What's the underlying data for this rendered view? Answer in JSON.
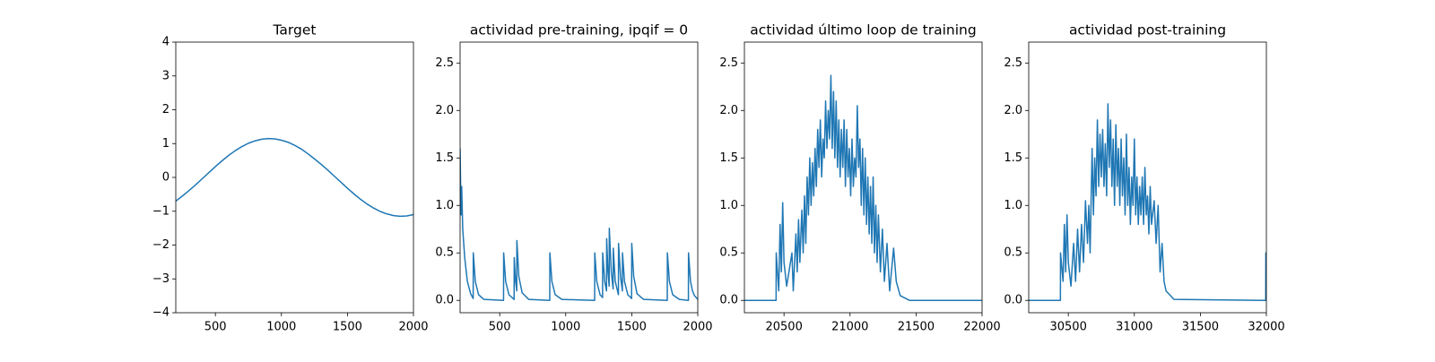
{
  "chart_data": [
    {
      "type": "line",
      "title": "Target",
      "color": "#1f77b4",
      "xlim": [
        200,
        2000
      ],
      "xticks": [
        500,
        1000,
        1500,
        2000
      ],
      "ylim": [
        -4,
        4
      ],
      "yticks": [
        {
          "value": -4,
          "label": "−4"
        },
        {
          "value": -3,
          "label": "−3"
        },
        {
          "value": -2,
          "label": "−2"
        },
        {
          "value": -1,
          "label": "−1"
        },
        0,
        1,
        2,
        3,
        4
      ],
      "x": [
        200,
        250,
        300,
        350,
        400,
        450,
        500,
        550,
        600,
        650,
        700,
        750,
        800,
        850,
        900,
        950,
        1000,
        1050,
        1100,
        1150,
        1200,
        1250,
        1300,
        1350,
        1400,
        1450,
        1500,
        1550,
        1600,
        1650,
        1700,
        1750,
        1800,
        1850,
        1900,
        1950,
        2000
      ],
      "values": [
        -0.7,
        -0.55,
        -0.39,
        -0.22,
        -0.04,
        0.14,
        0.32,
        0.49,
        0.65,
        0.79,
        0.91,
        1.01,
        1.08,
        1.13,
        1.15,
        1.14,
        1.1,
        1.04,
        0.95,
        0.84,
        0.7,
        0.55,
        0.39,
        0.22,
        0.04,
        -0.14,
        -0.32,
        -0.49,
        -0.65,
        -0.79,
        -0.91,
        -1.01,
        -1.08,
        -1.13,
        -1.15,
        -1.14,
        -1.1
      ]
    },
    {
      "type": "line",
      "title": "actividad pre-training, ipqif = 0",
      "color": "#1f77b4",
      "xlim": [
        200,
        2000
      ],
      "xticks": [
        500,
        1000,
        1500,
        2000
      ],
      "ylim": [
        -0.13,
        2.72
      ],
      "yticks": [
        {
          "value": 0,
          "label": "0.0"
        },
        0.5,
        {
          "value": 1,
          "label": "1.0"
        },
        1.5,
        {
          "value": 2,
          "label": "2.0"
        },
        2.5
      ],
      "x": [
        200,
        207,
        212,
        220,
        235,
        255,
        280,
        299,
        300,
        315,
        340,
        380,
        529,
        530,
        545,
        570,
        609,
        610,
        620,
        629,
        630,
        645,
        670,
        720,
        879,
        880,
        895,
        920,
        970,
        1219,
        1220,
        1235,
        1260,
        1279,
        1280,
        1295,
        1309,
        1310,
        1320,
        1329,
        1330,
        1345,
        1359,
        1360,
        1375,
        1399,
        1400,
        1415,
        1429,
        1430,
        1445,
        1470,
        1499,
        1500,
        1515,
        1540,
        1590,
        1769,
        1770,
        1785,
        1810,
        1860,
        1929,
        1930,
        1945,
        1960,
        1975,
        2000
      ],
      "values": [
        1.6,
        0.9,
        1.2,
        0.75,
        0.45,
        0.2,
        0.07,
        0.02,
        0.5,
        0.2,
        0.06,
        0.01,
        0,
        0.5,
        0.2,
        0.06,
        0.01,
        0.45,
        0.2,
        0.1,
        0.63,
        0.25,
        0.08,
        0.01,
        0,
        0.5,
        0.2,
        0.06,
        0.01,
        0,
        0.5,
        0.2,
        0.06,
        0.03,
        0.5,
        0.2,
        0.1,
        0.65,
        0.3,
        0.15,
        0.76,
        0.3,
        0.12,
        0.55,
        0.2,
        0.06,
        0.6,
        0.25,
        0.1,
        0.5,
        0.2,
        0.06,
        0.02,
        0.6,
        0.25,
        0.07,
        0.01,
        0,
        0.5,
        0.2,
        0.06,
        0.01,
        0,
        0.5,
        0.2,
        0.1,
        0.05,
        0.01
      ]
    },
    {
      "type": "line",
      "title": "actividad último loop de training",
      "color": "#1f77b4",
      "xlim": [
        20200,
        22000
      ],
      "xticks": [
        20500,
        21000,
        21500,
        22000
      ],
      "ylim": [
        -0.13,
        2.72
      ],
      "yticks": [
        {
          "value": 0,
          "label": "0.0"
        },
        0.5,
        {
          "value": 1,
          "label": "1.0"
        },
        1.5,
        {
          "value": 2,
          "label": "2.0"
        },
        2.5
      ],
      "x": [
        20200,
        20440,
        20441,
        20460,
        20470,
        20480,
        20490,
        20500,
        20520,
        20560,
        20570,
        20590,
        20600,
        20610,
        20620,
        20635,
        20645,
        20655,
        20665,
        20675,
        20685,
        20695,
        20705,
        20715,
        20725,
        20735,
        20745,
        20755,
        20765,
        20775,
        20785,
        20795,
        20805,
        20815,
        20825,
        20835,
        20845,
        20855,
        20865,
        20875,
        20885,
        20895,
        20905,
        20915,
        20925,
        20935,
        20945,
        20955,
        20965,
        20975,
        20985,
        20995,
        21005,
        21015,
        21025,
        21035,
        21045,
        21055,
        21065,
        21075,
        21085,
        21095,
        21105,
        21115,
        21125,
        21135,
        21145,
        21155,
        21165,
        21175,
        21185,
        21195,
        21205,
        21215,
        21230,
        21245,
        21260,
        21280,
        21300,
        21330,
        21350,
        21380,
        21450,
        22000
      ],
      "values": [
        0,
        0,
        0.5,
        0.1,
        0.8,
        0.3,
        1.03,
        0.4,
        0.15,
        0.5,
        0.1,
        0.7,
        0.3,
        0.85,
        0.4,
        0.95,
        0.5,
        1.1,
        0.6,
        1.3,
        0.9,
        1.5,
        1.0,
        1.45,
        1.1,
        1.6,
        1.2,
        1.8,
        1.4,
        1.9,
        1.3,
        1.7,
        1.5,
        2.1,
        1.6,
        2.0,
        1.7,
        2.37,
        1.6,
        2.2,
        1.5,
        2.1,
        1.4,
        1.9,
        1.3,
        1.8,
        1.4,
        1.9,
        1.2,
        1.8,
        1.3,
        1.6,
        1.1,
        1.7,
        1.2,
        1.5,
        1.3,
        2.05,
        1.4,
        1.7,
        1.0,
        1.6,
        0.9,
        1.5,
        0.8,
        1.3,
        0.7,
        1.2,
        0.6,
        1.3,
        0.5,
        1.0,
        0.4,
        0.9,
        0.3,
        0.75,
        0.2,
        0.6,
        0.1,
        0.55,
        0.2,
        0.05,
        0,
        0
      ]
    },
    {
      "type": "line",
      "title": "actividad post-training",
      "color": "#1f77b4",
      "xlim": [
        30200,
        32000
      ],
      "xticks": [
        30500,
        31000,
        31500,
        32000
      ],
      "ylim": [
        -0.13,
        2.72
      ],
      "yticks": [
        {
          "value": 0,
          "label": "0.0"
        },
        0.5,
        {
          "value": 1,
          "label": "1.0"
        },
        1.5,
        {
          "value": 2,
          "label": "2.0"
        },
        2.5
      ],
      "x": [
        30200,
        30440,
        30441,
        30460,
        30470,
        30480,
        30490,
        30500,
        30520,
        30540,
        30555,
        30570,
        30585,
        30600,
        30615,
        30630,
        30645,
        30655,
        30665,
        30680,
        30690,
        30700,
        30710,
        30720,
        30730,
        30740,
        30750,
        30760,
        30770,
        30780,
        30790,
        30800,
        30810,
        30820,
        30830,
        30840,
        30850,
        30860,
        30870,
        30880,
        30890,
        30900,
        30910,
        30920,
        30930,
        30940,
        30950,
        30960,
        30970,
        30980,
        30990,
        31000,
        31010,
        31020,
        31030,
        31040,
        31050,
        31060,
        31070,
        31080,
        31090,
        31100,
        31110,
        31120,
        31130,
        31150,
        31165,
        31180,
        31195,
        31210,
        31225,
        31240,
        31300,
        31995,
        31996,
        32000
      ],
      "values": [
        0,
        0,
        0.5,
        0.2,
        0.8,
        0.3,
        0.9,
        0.4,
        0.15,
        0.6,
        0.2,
        0.75,
        0.3,
        0.8,
        0.4,
        1.05,
        0.6,
        1.0,
        0.5,
        1.6,
        0.9,
        1.5,
        1.1,
        1.9,
        1.2,
        1.75,
        1.3,
        1.8,
        1.2,
        1.65,
        1.1,
        2.07,
        1.4,
        1.9,
        1.2,
        1.7,
        1.0,
        1.85,
        1.2,
        1.6,
        1.0,
        1.7,
        1.1,
        1.5,
        0.9,
        1.75,
        1.0,
        1.4,
        0.8,
        1.3,
        1.0,
        1.7,
        0.9,
        1.3,
        0.8,
        1.2,
        0.9,
        1.3,
        0.8,
        1.4,
        0.9,
        1.1,
        0.7,
        1.2,
        0.8,
        1.05,
        0.6,
        1.0,
        0.3,
        0.6,
        0.2,
        0.1,
        0.01,
        0,
        0.5,
        0.25
      ]
    }
  ]
}
